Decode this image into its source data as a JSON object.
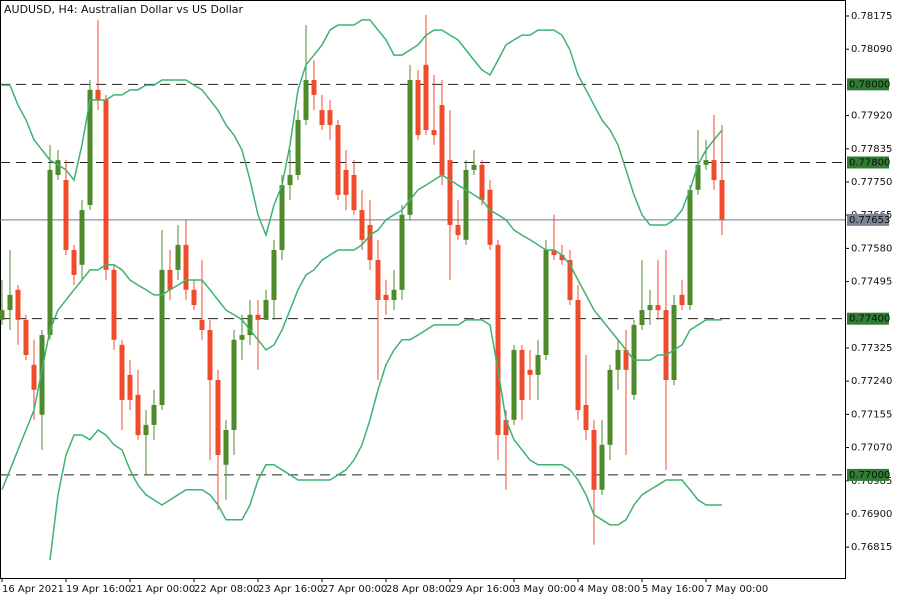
{
  "chart_data": {
    "type": "candlestick",
    "title": "AUDUSD, H4:  Australian Dollar vs US Dollar",
    "categories": [
      "16 Apr 2021",
      null,
      null,
      null,
      null,
      null,
      null,
      null,
      "19 Apr 16:00",
      null,
      null,
      null,
      null,
      null,
      null,
      null,
      "21 Apr 00:00",
      null,
      null,
      null,
      null,
      null,
      null,
      null,
      "22 Apr 08:00",
      null,
      null,
      null,
      null,
      null,
      null,
      null,
      "23 Apr 16:00",
      null,
      null,
      null,
      null,
      null,
      null,
      null,
      "27 Apr 00:00",
      null,
      null,
      null,
      null,
      null,
      null,
      null,
      "28 Apr 08:00",
      null,
      null,
      null,
      null,
      null,
      null,
      null,
      "29 Apr 16:00",
      null,
      null,
      null,
      null,
      null,
      null,
      null,
      "3 May 00:00",
      null,
      null,
      null,
      null,
      null,
      null,
      null,
      "4 May 08:00",
      null,
      null,
      null,
      null,
      null,
      null,
      null,
      "5 May 16:00",
      null,
      null,
      null,
      null,
      null,
      null,
      null,
      "7 May 00:00",
      null,
      null
    ],
    "open": [
      0.77397,
      0.77422,
      0.77474,
      0.77397,
      0.77282,
      0.77154,
      0.77358,
      0.77768,
      0.77755,
      0.77576,
      0.77538,
      0.77691,
      0.77986,
      0.7796,
      0.77525,
      0.77333,
      0.77256,
      0.77205,
      0.77102,
      0.77128,
      0.77179,
      0.77525,
      0.77525,
      0.77589,
      0.77474,
      0.77397,
      0.77371,
      0.77243,
      0.77026,
      0.77115,
      0.77346,
      0.77358,
      0.7741,
      0.77397,
      0.77448,
      0.77576,
      0.77742,
      0.77768,
      0.77909,
      0.78011,
      0.77934,
      0.77934,
      0.77896,
      0.77781,
      0.77768,
      0.77678,
      0.7764,
      0.7755,
      0.77461,
      0.77448,
      0.77474,
      0.77666,
      0.78011,
      0.7805,
      0.77883,
      0.77947,
      0.77806,
      0.7764,
      0.77602,
      0.77781,
      0.77794,
      0.7773,
      0.77589,
      0.77141,
      0.77141,
      0.7732,
      0.77269,
      0.77256,
      0.77307,
      0.77576,
      0.77563,
      0.7755,
      0.77448,
      0.77179,
      0.77115,
      0.76962,
      0.77077,
      0.77269,
      0.7732,
      0.77205,
      0.77384,
      0.77422,
      0.77435,
      0.77422,
      0.77243,
      0.77461,
      0.77435,
      0.7773,
      0.77794,
      0.77806,
      0.77755
    ],
    "high": [
      0.77499,
      0.77576,
      0.77486,
      0.7741,
      0.77346,
      0.77371,
      0.77845,
      0.77832,
      0.77806,
      0.77589,
      0.77704,
      0.78011,
      0.78165,
      0.77973,
      0.77538,
      0.77346,
      0.77294,
      0.77269,
      0.77166,
      0.77218,
      0.77627,
      0.77576,
      0.7764,
      0.77653,
      0.77499,
      0.7755,
      0.77397,
      0.77269,
      0.77141,
      0.77371,
      0.7741,
      0.77448,
      0.77448,
      0.77474,
      0.77602,
      0.77768,
      0.77832,
      0.77934,
      0.78152,
      0.78062,
      0.77973,
      0.7796,
      0.77909,
      0.77832,
      0.77806,
      0.7773,
      0.77704,
      0.77602,
      0.77499,
      0.77525,
      0.77691,
      0.7805,
      0.78037,
      0.78178,
      0.78024,
      0.78011,
      0.77934,
      0.77704,
      0.77806,
      0.77832,
      0.77806,
      0.77755,
      0.77602,
      0.77166,
      0.77333,
      0.77333,
      0.7732,
      0.77346,
      0.77602,
      0.77666,
      0.77589,
      0.77576,
      0.77486,
      0.77307,
      0.77141,
      0.77141,
      0.77282,
      0.77346,
      0.77371,
      0.77397,
      0.7755,
      0.77474,
      0.7755,
      0.77576,
      0.77461,
      0.77499,
      0.77742,
      0.77883,
      0.77858,
      0.77922,
      0.77896
    ],
    "low": [
      0.77384,
      0.77371,
      0.77333,
      0.77294,
      0.77141,
      0.77064,
      0.77346,
      0.77755,
      0.77563,
      0.77486,
      0.77499,
      0.77678,
      0.77934,
      0.77499,
      0.7732,
      0.77115,
      0.77166,
      0.7709,
      0.77,
      0.7709,
      0.77166,
      0.77448,
      0.77499,
      0.77448,
      0.77422,
      0.77346,
      0.77038,
      0.7691,
      0.76936,
      0.77051,
      0.77294,
      0.77333,
      0.77269,
      0.77397,
      0.77397,
      0.7755,
      0.77704,
      0.77755,
      0.77896,
      0.77934,
      0.77883,
      0.77858,
      0.77704,
      0.77678,
      0.77666,
      0.77576,
      0.77525,
      0.77243,
      0.7741,
      0.77422,
      0.77448,
      0.77653,
      0.77858,
      0.7787,
      0.77845,
      0.77742,
      0.77499,
      0.77602,
      0.77589,
      0.77768,
      0.77691,
      0.77576,
      0.77038,
      0.76962,
      0.77128,
      0.77141,
      0.77192,
      0.77192,
      0.77294,
      0.7755,
      0.77538,
      0.77435,
      0.77141,
      0.7709,
      0.76821,
      0.76949,
      0.77038,
      0.77218,
      0.77051,
      0.77192,
      0.77371,
      0.77384,
      0.77397,
      0.77013,
      0.7723,
      0.77422,
      0.77422,
      0.77717,
      0.77781,
      0.7773,
      0.77614
    ],
    "close": [
      0.77422,
      0.77461,
      0.77397,
      0.77307,
      0.77218,
      0.77358,
      0.77781,
      0.77806,
      0.77576,
      0.77512,
      0.77678,
      0.77986,
      0.7796,
      0.77525,
      0.77346,
      0.77192,
      0.77192,
      0.77102,
      0.77128,
      0.77179,
      0.77525,
      0.77474,
      0.77589,
      0.77474,
      0.77435,
      0.77371,
      0.77243,
      0.77051,
      0.77115,
      0.77346,
      0.77358,
      0.7741,
      0.77397,
      0.77448,
      0.77576,
      0.77742,
      0.77768,
      0.77909,
      0.78011,
      0.77973,
      0.77896,
      0.77896,
      0.77717,
      0.77717,
      0.77678,
      0.77602,
      0.7755,
      0.77448,
      0.77448,
      0.77474,
      0.77666,
      0.78011,
      0.7787,
      0.77883,
      0.7787,
      0.77768,
      0.7764,
      0.77614,
      0.77781,
      0.77794,
      0.77704,
      0.77589,
      0.77102,
      0.77102,
      0.7732,
      0.77192,
      0.77256,
      0.77307,
      0.77576,
      0.77563,
      0.7755,
      0.77448,
      0.77166,
      0.77115,
      0.76962,
      0.77077,
      0.77269,
      0.7732,
      0.77269,
      0.77384,
      0.77422,
      0.77435,
      0.77422,
      0.77243,
      0.77435,
      0.77435,
      0.7773,
      0.77794,
      0.77806,
      0.77755,
      0.77653
    ],
    "bull_color": "#4f8a2a",
    "bear_color": "#ef4b2a",
    "bands": [
      {
        "color": "#3cb371",
        "values": [
          0.77998,
          0.77998,
          0.77947,
          0.77909,
          0.77858,
          0.77832,
          0.77806,
          0.77794,
          0.77781,
          0.77755,
          0.77845,
          0.7796,
          0.7796,
          0.7796,
          0.77973,
          0.77973,
          0.77986,
          0.77986,
          0.77998,
          0.77998,
          0.78011,
          0.78011,
          0.78011,
          0.78011,
          0.77998,
          0.77986,
          0.7796,
          0.77934,
          0.77896,
          0.7787,
          0.77832,
          0.77755,
          0.77666,
          0.77614,
          0.77691,
          0.77742,
          0.77845,
          0.77986,
          0.7805,
          0.78075,
          0.78101,
          0.78139,
          0.78152,
          0.78152,
          0.78152,
          0.78165,
          0.78165,
          0.78139,
          0.78114,
          0.78075,
          0.78075,
          0.78088,
          0.78101,
          0.78126,
          0.78139,
          0.78139,
          0.78126,
          0.78114,
          0.78088,
          0.78062,
          0.78037,
          0.78024,
          0.78062,
          0.78101,
          0.78114,
          0.78126,
          0.78126,
          0.78139,
          0.78139,
          0.78139,
          0.78126,
          0.78088,
          0.78024,
          0.77986,
          0.77947,
          0.77909,
          0.77883,
          0.77845,
          0.77781,
          0.77717,
          0.77666,
          0.7764,
          0.7764,
          0.7764,
          0.77653,
          0.77678,
          0.7773,
          0.77794,
          0.77832,
          0.77858,
          0.77883
        ]
      },
      {
        "color": "#3cb371",
        "values": [
          0.76962,
          0.77013,
          0.77064,
          0.77115,
          0.77166,
          0.77269,
          0.77371,
          0.77422,
          0.77448,
          0.77474,
          0.77499,
          0.77525,
          0.77525,
          0.77538,
          0.77538,
          0.77525,
          0.77499,
          0.77486,
          0.77474,
          0.77461,
          0.77461,
          0.77474,
          0.77486,
          0.77499,
          0.77499,
          0.77499,
          0.77474,
          0.77448,
          0.77422,
          0.7741,
          0.77397,
          0.77371,
          0.77346,
          0.7732,
          0.77333,
          0.77371,
          0.77422,
          0.77474,
          0.77512,
          0.77525,
          0.7755,
          0.77563,
          0.77576,
          0.77576,
          0.77576,
          0.77589,
          0.77614,
          0.77627,
          0.77653,
          0.77666,
          0.77678,
          0.77704,
          0.7773,
          0.77742,
          0.77755,
          0.77768,
          0.77755,
          0.77742,
          0.7773,
          0.77717,
          0.77704,
          0.77678,
          0.77666,
          0.77653,
          0.77627,
          0.77614,
          0.77602,
          0.77589,
          0.77576,
          0.77576,
          0.77563,
          0.77538,
          0.77499,
          0.77461,
          0.77422,
          0.77397,
          0.77371,
          0.77346,
          0.7732,
          0.77294,
          0.77294,
          0.77294,
          0.77307,
          0.77307,
          0.7732,
          0.77333,
          0.77371,
          0.77384,
          0.77397,
          0.77397,
          0.77397
        ]
      },
      {
        "color": "#3cb371",
        "values": [
          null,
          null,
          null,
          null,
          null,
          null,
          0.76782,
          0.76949,
          0.77051,
          0.77102,
          0.77102,
          0.7709,
          0.77115,
          0.77102,
          0.77077,
          0.77064,
          0.77013,
          0.76974,
          0.76949,
          0.76936,
          0.76923,
          0.76936,
          0.76949,
          0.76962,
          0.76962,
          0.76962,
          0.76949,
          0.76923,
          0.76885,
          0.76885,
          0.76885,
          0.76923,
          0.76987,
          0.77026,
          0.77026,
          0.77013,
          0.77,
          0.76987,
          0.76987,
          0.76987,
          0.76987,
          0.76987,
          0.77,
          0.77013,
          0.77038,
          0.77077,
          0.77141,
          0.77218,
          0.77282,
          0.7732,
          0.77346,
          0.77346,
          0.77358,
          0.77371,
          0.77384,
          0.77384,
          0.77384,
          0.77384,
          0.77397,
          0.77397,
          0.77397,
          0.77384,
          0.77269,
          0.77141,
          0.7709,
          0.77064,
          0.77038,
          0.77026,
          0.77026,
          0.77026,
          0.77026,
          0.77013,
          0.76987,
          0.76949,
          0.76898,
          0.76885,
          0.76872,
          0.76872,
          0.76885,
          0.76923,
          0.76949,
          0.76962,
          0.76974,
          0.76987,
          0.76987,
          0.76987,
          0.76962,
          0.76936,
          0.76923,
          0.76923,
          0.76923
        ]
      }
    ],
    "levels": [
      {
        "value": 0.78,
        "label": "0.78000"
      },
      {
        "value": 0.778,
        "label": "0.77800"
      },
      {
        "value": 0.774,
        "label": "0.77400"
      },
      {
        "value": 0.77,
        "label": "0.77000"
      }
    ],
    "level_color": "#2e7d32",
    "last_price": 0.77653,
    "last_price_color": "#7a8694",
    "ylim": [
      0.76736,
      0.78216
    ],
    "yticks": [
      0.78175,
      {
        "value": 0.7809,
        "label": "0.78090"
      },
      {
        "value": 0.7792,
        "label": "0.77920"
      },
      0.77835,
      {
        "value": 0.7775,
        "label": "0.77750"
      },
      0.77665,
      {
        "value": 0.7758,
        "label": "0.77580"
      },
      0.77495,
      0.77325,
      {
        "value": 0.7724,
        "label": "0.77240"
      },
      0.77155,
      {
        "value": 0.7707,
        "label": "0.77070"
      },
      0.76985,
      {
        "value": 0.769,
        "label": "0.76900"
      },
      0.76815
    ]
  }
}
